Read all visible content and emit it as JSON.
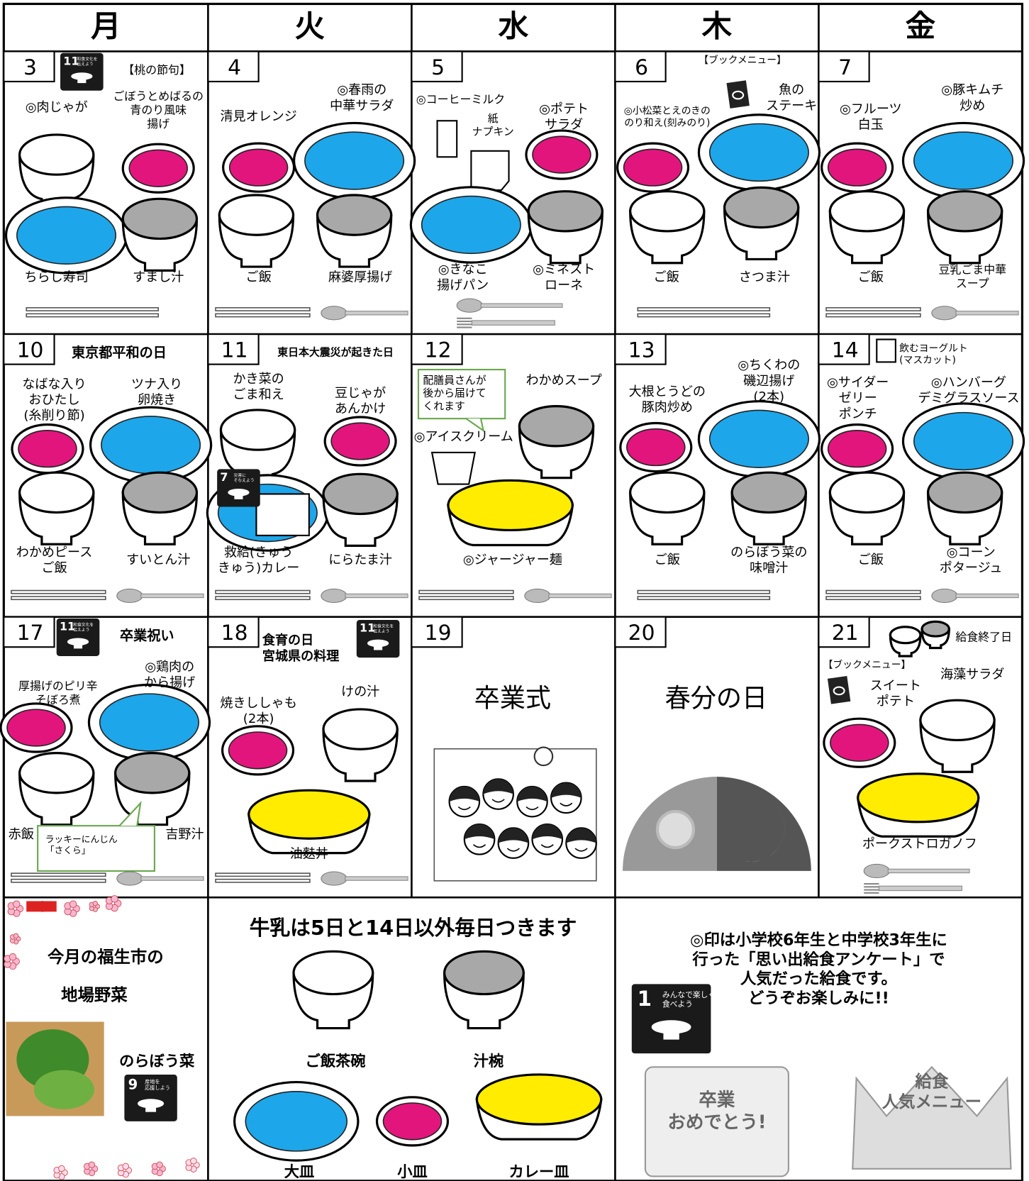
{
  "header": {
    "weekdays": [
      "月",
      "火",
      "水",
      "木",
      "金"
    ]
  },
  "weeks": [
    [
      {
        "date": "3",
        "icon": {
          "number": "11",
          "caption": "和食文化を\n伝えよう"
        },
        "notes": [
          "【桃の節句】"
        ],
        "items": [
          "◎肉じゃが",
          "ごぼうとめばるの\n青のり風味\n揚げ",
          "ちらし寿司",
          "すまし汁"
        ]
      },
      {
        "date": "4",
        "items": [
          "清見オレンジ",
          "◎春雨の\n中華サラダ",
          "ご飯",
          "麻婆厚揚げ"
        ]
      },
      {
        "date": "5",
        "items": [
          "◎コーヒーミルク",
          "紙\nナプキン",
          "◎ポテト\nサラダ",
          "◎きなこ\n揚げパン",
          "◎ミネスト\nローネ"
        ]
      },
      {
        "date": "6",
        "notes": [
          "【ブックメニュー】"
        ],
        "items": [
          "◎小松菜とえのきの\nのり和え(刻みのり)",
          "魚の\nステーキ",
          "ご飯",
          "さつま汁"
        ]
      },
      {
        "date": "7",
        "items": [
          "◎フルーツ\n白玉",
          "◎豚キムチ\n炒め",
          "ご飯",
          "豆乳ごま中華\nスープ"
        ]
      }
    ],
    [
      {
        "date": "10",
        "notes": [
          "東京都平和の日"
        ],
        "items": [
          "なばな入り\nおひたし\n(糸削り節)",
          "ツナ入り\n卵焼き",
          "わかめピース\nご飯",
          "すいとん汁"
        ]
      },
      {
        "date": "11",
        "icon": {
          "number": "7",
          "caption": "災害に\nそなえよう"
        },
        "notes": [
          "東日本大震災が起きた日"
        ],
        "items": [
          "かき菜の\nごま和え",
          "豆じゃが\nあんかけ",
          "救給(きゅう\nきゅう)カレー",
          "にらたま汁"
        ]
      },
      {
        "date": "12",
        "notes": [
          "配膳員さんが\n後から届けて\nくれます"
        ],
        "items": [
          "わかめスープ",
          "◎アイスクリーム",
          "◎ジャージャー麺"
        ]
      },
      {
        "date": "13",
        "items": [
          "大根とうどの\n豚肉炒め",
          "◎ちくわの\n磯辺揚げ\n(2本)",
          "ご飯",
          "のらぼう菜の\n味噌汁"
        ]
      },
      {
        "date": "14",
        "notes": [
          "飲むヨーグルト\n(マスカット)"
        ],
        "items": [
          "◎サイダー\nゼリー\nポンチ",
          "◎ハンバーグ\nデミグラスソース",
          "ご飯",
          "◎コーン\nポタージュ"
        ]
      }
    ],
    [
      {
        "date": "17",
        "icon": {
          "number": "11",
          "caption": "和食文化を\n伝えよう"
        },
        "notes": [
          "卒業祝い",
          "ラッキーにんじん\n「さくら」"
        ],
        "items": [
          "厚揚げのピリ辛\nそぼろ煮",
          "◎鶏肉の\nから揚げ",
          "赤飯",
          "吉野汁"
        ]
      },
      {
        "date": "18",
        "icon": {
          "number": "11",
          "caption": "和食文化を\n伝えよう"
        },
        "notes": [
          "食育の日\n宮城県の料理"
        ],
        "items": [
          "焼きししゃも\n(2本)",
          "けの汁",
          "油麩丼"
        ]
      },
      {
        "date": "19",
        "notes": [
          "卒業式"
        ]
      },
      {
        "date": "20",
        "notes": [
          "春分の日"
        ]
      },
      {
        "date": "21",
        "notes": [
          "給食終了日",
          "【ブックメニュー】"
        ],
        "items": [
          "スイート\nポテト",
          "海藻サラダ",
          "ポークストロガノフ"
        ]
      }
    ]
  ],
  "footer": {
    "local": {
      "lines": [
        "今月の福生市の",
        "地場野菜"
      ],
      "vegetable": "のらぼう菜",
      "icon": {
        "number": "9",
        "caption": "産地を\n応援しよう"
      }
    },
    "milk": {
      "title": "牛乳は5日と14日以外毎日つきます",
      "dishes": [
        "ご飯茶碗",
        "汁椀",
        "大皿",
        "小皿",
        "カレー皿"
      ]
    },
    "survey": {
      "text": "◎印は小学校6年生と中学校3年生に\n行った「思い出給食アンケート」で\n人気だった給食です。\nどうぞお楽しみに!!",
      "icon": {
        "number": "1",
        "caption": "みんなで楽しく\n食べよう"
      },
      "illustrations": [
        "卒業\nおめでとう!",
        "給食\n人気メニュー"
      ]
    }
  }
}
